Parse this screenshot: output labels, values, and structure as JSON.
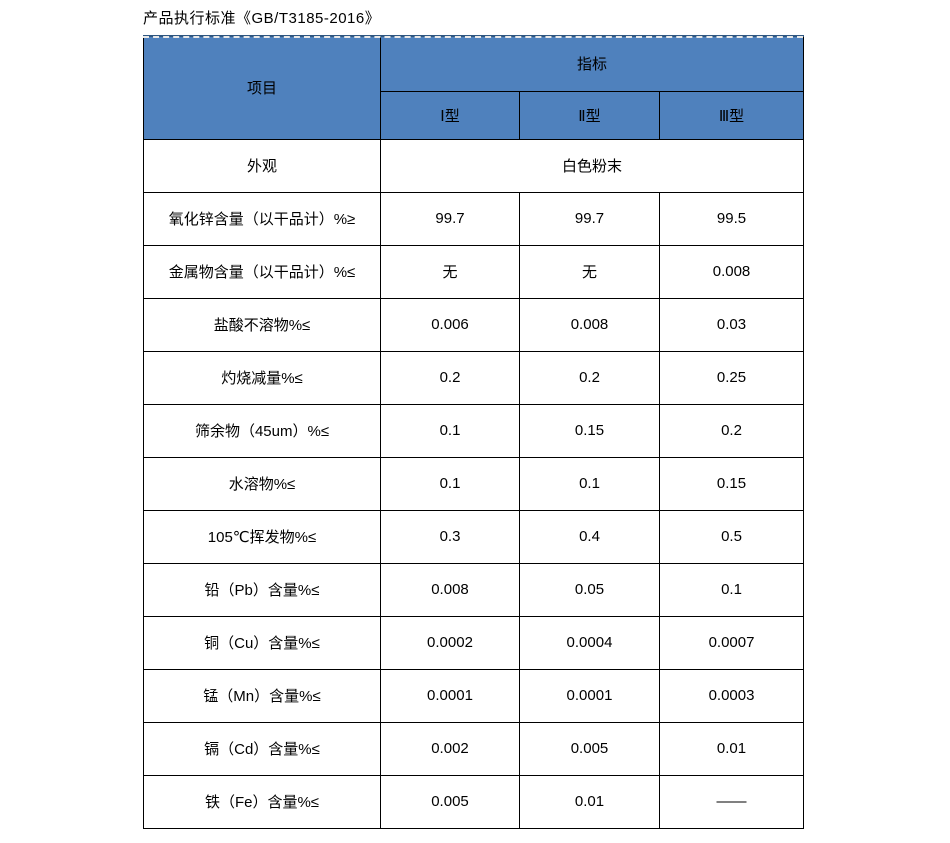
{
  "page": {
    "title": "产品执行标准《GB/T3185-2016》"
  },
  "table": {
    "colors": {
      "header_bg": "#4f81bd",
      "border": "#000000"
    },
    "header": {
      "item_label": "项目",
      "indicator_label": "指标",
      "types": [
        "Ⅰ型",
        "Ⅱ型",
        "Ⅲ型"
      ]
    },
    "appearance_row": {
      "label": "外观",
      "value": "白色粉末"
    },
    "rows": [
      {
        "label": "氧化锌含量（以干品计）%≥",
        "values": [
          "99.7",
          "99.7",
          "99.5"
        ]
      },
      {
        "label": "金属物含量（以干品计）%≤",
        "values": [
          "无",
          "无",
          "0.008"
        ]
      },
      {
        "label": "盐酸不溶物%≤",
        "values": [
          "0.006",
          "0.008",
          "0.03"
        ]
      },
      {
        "label": "灼烧减量%≤",
        "values": [
          "0.2",
          "0.2",
          "0.25"
        ]
      },
      {
        "label": "筛余物（45um）%≤",
        "values": [
          "0.1",
          "0.15",
          "0.2"
        ]
      },
      {
        "label": "水溶物%≤",
        "values": [
          "0.1",
          "0.1",
          "0.15"
        ]
      },
      {
        "label": "105℃挥发物%≤",
        "values": [
          "0.3",
          "0.4",
          "0.5"
        ]
      },
      {
        "label": "铅（Pb）含量%≤",
        "values": [
          "0.008",
          "0.05",
          "0.1"
        ]
      },
      {
        "label": "铜（Cu）含量%≤",
        "values": [
          "0.0002",
          "0.0004",
          "0.0007"
        ]
      },
      {
        "label": "锰（Mn）含量%≤",
        "values": [
          "0.0001",
          "0.0001",
          "0.0003"
        ]
      },
      {
        "label": "镉（Cd）含量%≤",
        "values": [
          "0.002",
          "0.005",
          "0.01"
        ]
      },
      {
        "label": "铁（Fe）含量%≤",
        "values": [
          "0.005",
          "0.01",
          "——"
        ]
      }
    ]
  }
}
